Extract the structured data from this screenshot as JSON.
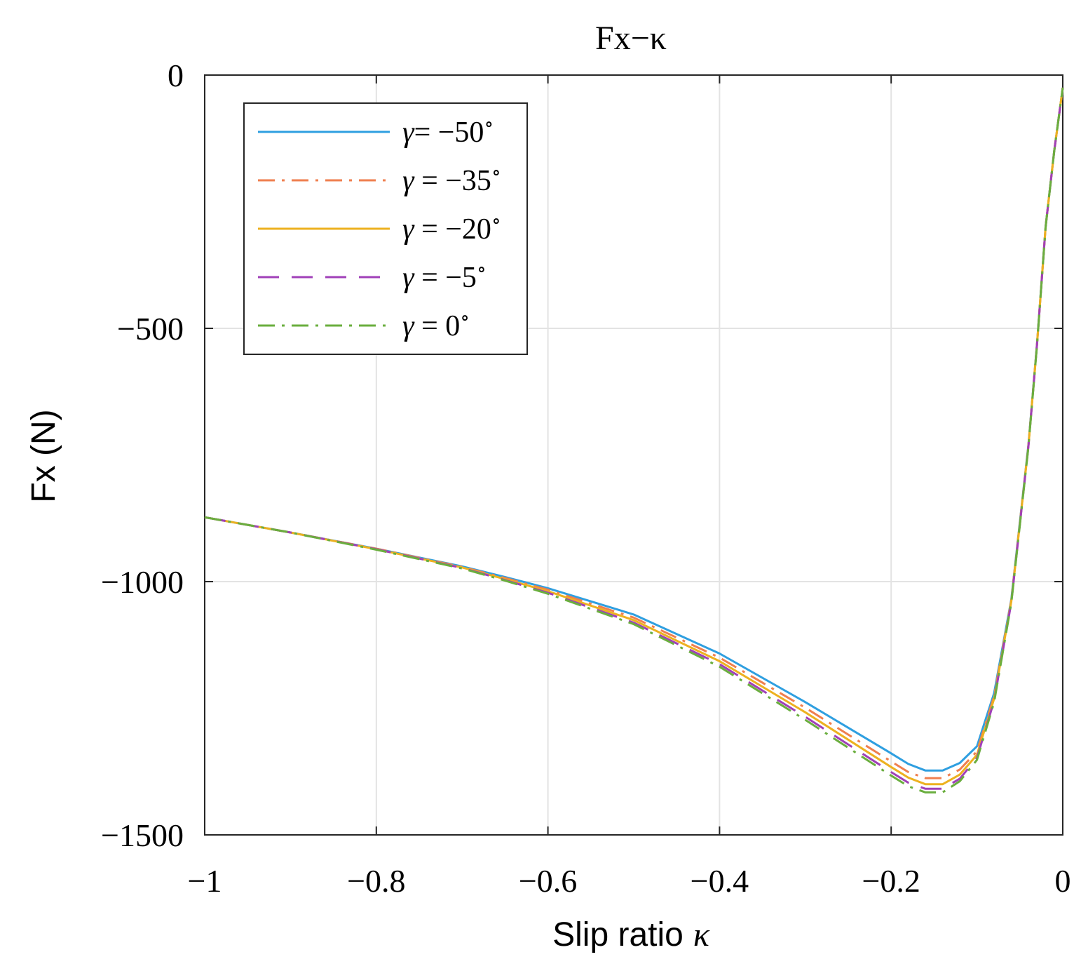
{
  "chart_data": {
    "type": "line",
    "title": "Fx−κ",
    "xlabel": "Slip ratio",
    "xlabel_symbol": "κ",
    "ylabel": "Fx (N)",
    "xlim": [
      -1,
      0
    ],
    "ylim": [
      -1500,
      0
    ],
    "xticks": [
      -1,
      -0.8,
      -0.6,
      -0.4,
      -0.2,
      0
    ],
    "xtick_labels": [
      "−1",
      "−0.8",
      "−0.6",
      "−0.4",
      "−0.2",
      "0"
    ],
    "yticks": [
      0,
      -500,
      -1000,
      -1500
    ],
    "ytick_labels": [
      "0",
      "−500",
      "−1000",
      "−1500"
    ],
    "grid": true,
    "legend_position": "top-left",
    "x": [
      -1.0,
      -0.9,
      -0.8,
      -0.7,
      -0.65,
      -0.6,
      -0.5,
      -0.4,
      -0.3,
      -0.2,
      -0.18,
      -0.16,
      -0.14,
      -0.12,
      -0.1,
      -0.08,
      -0.06,
      -0.04,
      -0.03,
      -0.02,
      -0.01,
      0.0
    ],
    "series": [
      {
        "name": "γ= −50°",
        "legend_symbol": "γ",
        "legend_rest": "= −50",
        "color": "#2f9fe0",
        "dash": "solid",
        "values": [
          -873,
          -903,
          -935,
          -970,
          -991,
          -1013,
          -1065,
          -1142,
          -1238,
          -1339,
          -1360,
          -1373,
          -1373,
          -1358,
          -1325,
          -1220,
          -1035,
          -730,
          -530,
          -300,
          -150,
          -25
        ]
      },
      {
        "name": "γ = −35°",
        "legend_symbol": "γ",
        "legend_rest": " = −35",
        "color": "#ef7f4f",
        "dash": "dashdot",
        "values": [
          -873,
          -903,
          -935,
          -971,
          -993,
          -1016,
          -1071,
          -1150,
          -1249,
          -1355,
          -1376,
          -1388,
          -1388,
          -1371,
          -1335,
          -1226,
          -1037,
          -731,
          -530,
          -300,
          -150,
          -25
        ]
      },
      {
        "name": "γ = −20°",
        "legend_symbol": "γ",
        "legend_rest": " = −20",
        "color": "#edb120",
        "dash": "solid",
        "values": [
          -873,
          -903,
          -936,
          -972,
          -995,
          -1019,
          -1076,
          -1157,
          -1258,
          -1366,
          -1387,
          -1400,
          -1400,
          -1381,
          -1342,
          -1231,
          -1039,
          -732,
          -531,
          -300,
          -150,
          -25
        ]
      },
      {
        "name": "γ = −5°",
        "legend_symbol": "γ",
        "legend_rest": " = −5",
        "color": "#a040b8",
        "dash": "dashed",
        "values": [
          -873,
          -903,
          -936,
          -973,
          -997,
          -1022,
          -1081,
          -1163,
          -1267,
          -1376,
          -1397,
          -1409,
          -1409,
          -1389,
          -1348,
          -1235,
          -1041,
          -733,
          -531,
          -300,
          -150,
          -25
        ]
      },
      {
        "name": "γ = 0°",
        "legend_symbol": "γ",
        "legend_rest": " = 0",
        "color": "#6aae3e",
        "dash": "dashdot",
        "values": [
          -873,
          -903,
          -937,
          -974,
          -998,
          -1024,
          -1084,
          -1168,
          -1273,
          -1383,
          -1404,
          -1416,
          -1416,
          -1394,
          -1352,
          -1238,
          -1042,
          -734,
          -532,
          -300,
          -150,
          -25
        ]
      }
    ]
  }
}
